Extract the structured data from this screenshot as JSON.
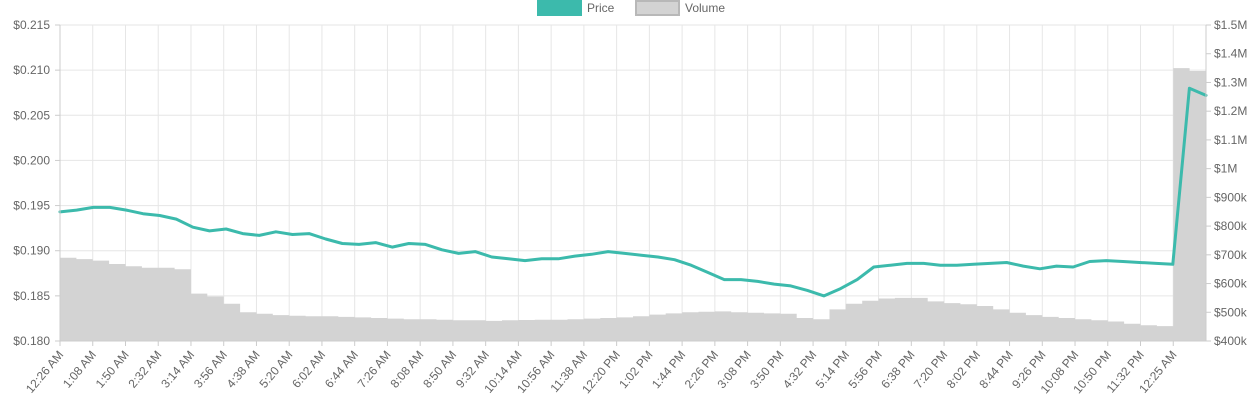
{
  "chart_data": {
    "type": "line",
    "legend": {
      "placement": "top-center",
      "items": [
        {
          "label": "Price",
          "color": "#3cbaac",
          "fill": "#3cbaac"
        },
        {
          "label": "Volume",
          "color": "#b8b8b8",
          "fill": "#d3d3d3"
        }
      ]
    },
    "y_left": {
      "min": 0.18,
      "max": 0.215,
      "ticks": [
        0.215,
        0.21,
        0.205,
        0.2,
        0.195,
        0.19,
        0.185,
        0.18
      ],
      "tick_labels": [
        "$0.215",
        "$0.210",
        "$0.205",
        "$0.200",
        "$0.195",
        "$0.190",
        "$0.185",
        "$0.180"
      ]
    },
    "y_right": {
      "min": 400000,
      "max": 1500000,
      "ticks": [
        1500000,
        1400000,
        1300000,
        1200000,
        1100000,
        1000000,
        900000,
        800000,
        700000,
        600000,
        500000,
        400000
      ],
      "tick_labels": [
        "$1.5M",
        "$1.4M",
        "$1.3M",
        "$1.2M",
        "$1.1M",
        "$1M",
        "$900k",
        "$800k",
        "$700k",
        "$600k",
        "$500k",
        "$400k"
      ]
    },
    "x_ticks": [
      "12:26 AM",
      "1:08 AM",
      "1:50 AM",
      "2:32 AM",
      "3:14 AM",
      "3:56 AM",
      "4:38 AM",
      "5:20 AM",
      "6:02 AM",
      "6:44 AM",
      "7:26 AM",
      "8:08 AM",
      "8:50 AM",
      "9:32 AM",
      "10:14 AM",
      "10:56 AM",
      "11:38 AM",
      "12:20 PM",
      "1:02 PM",
      "1:44 PM",
      "2:26 PM",
      "3:08 PM",
      "3:50 PM",
      "4:32 PM",
      "5:14 PM",
      "5:56 PM",
      "6:38 PM",
      "7:20 PM",
      "8:02 PM",
      "8:44 PM",
      "9:26 PM",
      "10:08 PM",
      "10:50 PM",
      "11:32 PM",
      "12:25 AM"
    ],
    "grid": true,
    "series": [
      {
        "name": "Price",
        "axis": "left",
        "values": [
          0.1943,
          0.1945,
          0.1948,
          0.1948,
          0.1945,
          0.1941,
          0.1939,
          0.1935,
          0.1926,
          0.1922,
          0.1924,
          0.1919,
          0.1917,
          0.1921,
          0.1918,
          0.1919,
          0.1913,
          0.1908,
          0.1907,
          0.1909,
          0.1904,
          0.1908,
          0.1907,
          0.1901,
          0.1897,
          0.1899,
          0.1893,
          0.1891,
          0.1889,
          0.1891,
          0.1891,
          0.1894,
          0.1896,
          0.1899,
          0.1897,
          0.1895,
          0.1893,
          0.189,
          0.1884,
          0.1876,
          0.1868,
          0.1868,
          0.1866,
          0.1863,
          0.1861,
          0.1856,
          0.185,
          0.1858,
          0.1868,
          0.1882,
          0.1884,
          0.1886,
          0.1886,
          0.1884,
          0.1884,
          0.1885,
          0.1886,
          0.1887,
          0.1883,
          0.188,
          0.1883,
          0.1882,
          0.1888,
          0.1889,
          0.1888,
          0.1887,
          0.1886,
          0.1885,
          0.208,
          0.2072
        ]
      },
      {
        "name": "Volume",
        "axis": "right",
        "values": [
          690000,
          685000,
          680000,
          668000,
          660000,
          655000,
          655000,
          650000,
          565000,
          555000,
          530000,
          500000,
          495000,
          490000,
          488000,
          486000,
          486000,
          484000,
          482000,
          480000,
          478000,
          476000,
          476000,
          474000,
          472000,
          472000,
          470000,
          472000,
          473000,
          474000,
          474000,
          476000,
          478000,
          480000,
          482000,
          486000,
          492000,
          496000,
          500000,
          502000,
          503000,
          500000,
          498000,
          496000,
          495000,
          480000,
          476000,
          510000,
          530000,
          540000,
          548000,
          550000,
          550000,
          538000,
          532000,
          528000,
          522000,
          510000,
          498000,
          490000,
          484000,
          480000,
          476000,
          472000,
          468000,
          460000,
          455000,
          452000,
          1350000,
          1340000
        ]
      }
    ]
  }
}
